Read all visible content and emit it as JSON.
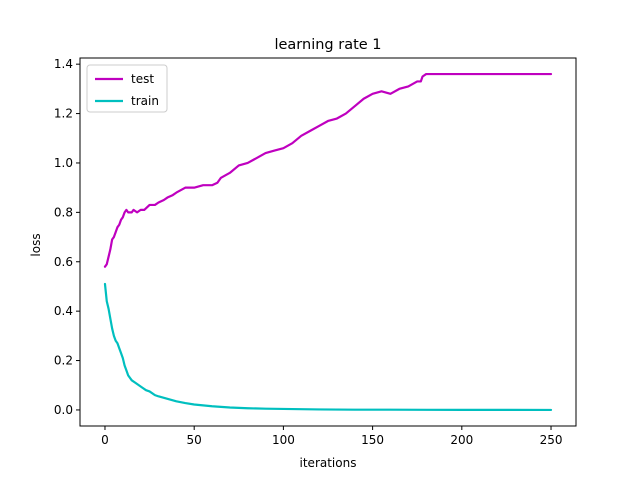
{
  "chart_data": {
    "type": "line",
    "title": "learning rate  1",
    "xlabel": "iterations",
    "ylabel": "loss",
    "xlim": [
      -14,
      264
    ],
    "ylim": [
      -0.065,
      1.425
    ],
    "xticks": [
      0,
      50,
      100,
      150,
      200,
      250
    ],
    "yticks": [
      0.0,
      0.2,
      0.4,
      0.6,
      0.8,
      1.0,
      1.2,
      1.4
    ],
    "ytick_labels": [
      "0.0",
      "0.2",
      "0.4",
      "0.6",
      "0.8",
      "1.0",
      "1.2",
      "1.4"
    ],
    "grid": false,
    "legend_position": "top-left",
    "series": [
      {
        "name": "test",
        "color": "#bf00bf",
        "x": [
          0,
          1,
          2,
          3,
          4,
          5,
          6,
          7,
          8,
          9,
          10,
          11,
          12,
          13,
          14,
          15,
          16,
          18,
          20,
          22,
          25,
          28,
          30,
          33,
          35,
          38,
          40,
          45,
          50,
          55,
          60,
          63,
          65,
          70,
          75,
          80,
          85,
          90,
          95,
          100,
          105,
          110,
          115,
          120,
          125,
          130,
          135,
          140,
          145,
          150,
          155,
          160,
          165,
          170,
          175,
          177,
          178,
          180,
          190,
          200,
          210,
          220,
          230,
          240,
          250
        ],
        "y": [
          0.58,
          0.59,
          0.62,
          0.65,
          0.69,
          0.7,
          0.72,
          0.74,
          0.75,
          0.77,
          0.78,
          0.8,
          0.81,
          0.8,
          0.8,
          0.8,
          0.81,
          0.8,
          0.81,
          0.81,
          0.83,
          0.83,
          0.84,
          0.85,
          0.86,
          0.87,
          0.88,
          0.9,
          0.9,
          0.91,
          0.91,
          0.92,
          0.94,
          0.96,
          0.99,
          1.0,
          1.02,
          1.04,
          1.05,
          1.06,
          1.08,
          1.11,
          1.13,
          1.15,
          1.17,
          1.18,
          1.2,
          1.23,
          1.26,
          1.28,
          1.29,
          1.28,
          1.3,
          1.31,
          1.33,
          1.33,
          1.35,
          1.36,
          1.36,
          1.36,
          1.36,
          1.36,
          1.36,
          1.36,
          1.36
        ]
      },
      {
        "name": "train",
        "color": "#00bfbf",
        "x": [
          0,
          1,
          2,
          3,
          4,
          5,
          6,
          7,
          8,
          9,
          10,
          11,
          12,
          13,
          14,
          15,
          17,
          19,
          21,
          23,
          25,
          28,
          30,
          35,
          40,
          45,
          50,
          60,
          70,
          80,
          90,
          100,
          120,
          140,
          160,
          180,
          200,
          220,
          250
        ],
        "y": [
          0.51,
          0.44,
          0.41,
          0.37,
          0.33,
          0.3,
          0.28,
          0.27,
          0.25,
          0.23,
          0.21,
          0.18,
          0.16,
          0.14,
          0.13,
          0.12,
          0.11,
          0.1,
          0.09,
          0.08,
          0.075,
          0.06,
          0.055,
          0.045,
          0.035,
          0.028,
          0.022,
          0.015,
          0.01,
          0.007,
          0.005,
          0.004,
          0.002,
          0.001,
          0.001,
          0.0005,
          0.0003,
          0.0002,
          0.0001
        ]
      }
    ]
  }
}
